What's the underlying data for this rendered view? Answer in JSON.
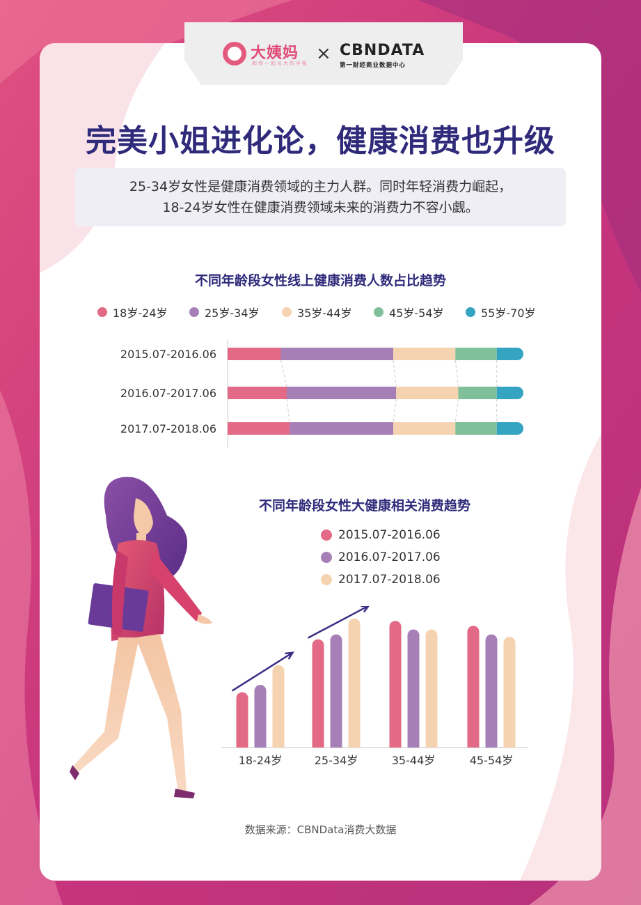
{
  "brand": {
    "left_name": "大姨妈",
    "left_tagline": "和你一起长大的手帐",
    "separator": "×",
    "right_name": "CBNDATA",
    "right_tagline": "第一财经商业数据中心"
  },
  "title": "完美小姐进化论，健康消费也升级",
  "summary": {
    "line1": "25-34岁女性是健康消费领域的主力人群。同时年轻消费力崛起，",
    "line2": "18-24岁女性在健康消费领域未来的消费力不容小觑。"
  },
  "colors": {
    "age_18_24": "#e26a86",
    "age_25_34": "#a67fb7",
    "age_35_44": "#f5d3b0",
    "age_45_54": "#7fc09a",
    "age_55_70": "#35a3c2",
    "title": "#2f2a7a"
  },
  "chart_data": [
    {
      "type": "bar",
      "orientation": "horizontal-stacked-percent",
      "title": "不同年龄段女性线上健康消费人数占比趋势",
      "categories": [
        "2015.07-2016.06",
        "2016.07-2017.06",
        "2017.07-2018.06"
      ],
      "series": [
        {
          "name": "18岁-24岁",
          "values": [
            18,
            20,
            21
          ]
        },
        {
          "name": "25岁-34岁",
          "values": [
            38,
            37,
            35
          ]
        },
        {
          "name": "35岁-44岁",
          "values": [
            21,
            21,
            21
          ]
        },
        {
          "name": "45岁-54岁",
          "values": [
            14,
            13,
            14
          ]
        },
        {
          "name": "55岁-70岁",
          "values": [
            9,
            9,
            9
          ]
        }
      ],
      "xlim": [
        0,
        100
      ],
      "legend_position": "top",
      "grid": false
    },
    {
      "type": "bar",
      "title": "不同年龄段女性大健康相关消费趋势",
      "categories": [
        "18-24岁",
        "25-34岁",
        "35-44岁",
        "45-54岁"
      ],
      "series": [
        {
          "name": "2015.07-2016.06",
          "values": [
            45,
            88,
            103,
            99
          ]
        },
        {
          "name": "2016.07-2017.06",
          "values": [
            51,
            92,
            96,
            92
          ]
        },
        {
          "name": "2017.07-2018.06",
          "values": [
            67,
            105,
            96,
            90
          ]
        }
      ],
      "ylim": [
        0,
        115
      ],
      "legend_position": "top",
      "grid": false
    }
  ],
  "source": "数据来源：CBNData消费大数据"
}
